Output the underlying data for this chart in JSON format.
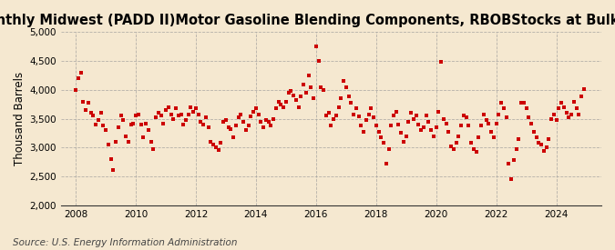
{
  "title": "Monthly Midwest (PADD II)Motor Gasoline Blending Components, RBOBStocks at Bulk Terminal",
  "ylabel": "Thousand Barrels",
  "source": "Source: U.S. Energy Information Administration",
  "ylim": [
    2000,
    5000
  ],
  "yticks": [
    2000,
    2500,
    3000,
    3500,
    4000,
    4500,
    5000
  ],
  "ytick_labels": [
    "2,000",
    "2,500",
    "3,000",
    "3,500",
    "4,000",
    "4,500",
    "5,000"
  ],
  "xlim": [
    2007.5,
    2025.5
  ],
  "xticks": [
    2008,
    2010,
    2012,
    2014,
    2016,
    2018,
    2020,
    2022,
    2024
  ],
  "marker_color": "#CC0000",
  "marker": "s",
  "marker_size": 3.5,
  "bg_color": "#F5E8D0",
  "plot_bg_color": "#F5E8D0",
  "grid_color": "#999999",
  "title_fontsize": 10.5,
  "ylabel_fontsize": 8.5,
  "source_fontsize": 7.5,
  "dates": [
    2008.0,
    2008.083,
    2008.167,
    2008.25,
    2008.333,
    2008.417,
    2008.5,
    2008.583,
    2008.667,
    2008.75,
    2008.833,
    2008.917,
    2009.0,
    2009.083,
    2009.167,
    2009.25,
    2009.333,
    2009.417,
    2009.5,
    2009.583,
    2009.667,
    2009.75,
    2009.833,
    2009.917,
    2010.0,
    2010.083,
    2010.167,
    2010.25,
    2010.333,
    2010.417,
    2010.5,
    2010.583,
    2010.667,
    2010.75,
    2010.833,
    2010.917,
    2011.0,
    2011.083,
    2011.167,
    2011.25,
    2011.333,
    2011.417,
    2011.5,
    2011.583,
    2011.667,
    2011.75,
    2011.833,
    2011.917,
    2012.0,
    2012.083,
    2012.167,
    2012.25,
    2012.333,
    2012.417,
    2012.5,
    2012.583,
    2012.667,
    2012.75,
    2012.833,
    2012.917,
    2013.0,
    2013.083,
    2013.167,
    2013.25,
    2013.333,
    2013.417,
    2013.5,
    2013.583,
    2013.667,
    2013.75,
    2013.833,
    2013.917,
    2014.0,
    2014.083,
    2014.167,
    2014.25,
    2014.333,
    2014.417,
    2014.5,
    2014.583,
    2014.667,
    2014.75,
    2014.833,
    2014.917,
    2015.0,
    2015.083,
    2015.167,
    2015.25,
    2015.333,
    2015.417,
    2015.5,
    2015.583,
    2015.667,
    2015.75,
    2015.833,
    2015.917,
    2016.0,
    2016.083,
    2016.167,
    2016.25,
    2016.333,
    2016.417,
    2016.5,
    2016.583,
    2016.667,
    2016.75,
    2016.833,
    2016.917,
    2017.0,
    2017.083,
    2017.167,
    2017.25,
    2017.333,
    2017.417,
    2017.5,
    2017.583,
    2017.667,
    2017.75,
    2017.833,
    2017.917,
    2018.0,
    2018.083,
    2018.167,
    2018.25,
    2018.333,
    2018.417,
    2018.5,
    2018.583,
    2018.667,
    2018.75,
    2018.833,
    2018.917,
    2019.0,
    2019.083,
    2019.167,
    2019.25,
    2019.333,
    2019.417,
    2019.5,
    2019.583,
    2019.667,
    2019.75,
    2019.833,
    2019.917,
    2020.0,
    2020.083,
    2020.167,
    2020.25,
    2020.333,
    2020.417,
    2020.5,
    2020.583,
    2020.667,
    2020.75,
    2020.833,
    2020.917,
    2021.0,
    2021.083,
    2021.167,
    2021.25,
    2021.333,
    2021.417,
    2021.5,
    2021.583,
    2021.667,
    2021.75,
    2021.833,
    2021.917,
    2022.0,
    2022.083,
    2022.167,
    2022.25,
    2022.333,
    2022.417,
    2022.5,
    2022.583,
    2022.667,
    2022.75,
    2022.833,
    2022.917,
    2023.0,
    2023.083,
    2023.167,
    2023.25,
    2023.333,
    2023.417,
    2023.5,
    2023.583,
    2023.667,
    2023.75,
    2023.833,
    2023.917,
    2024.0,
    2024.083,
    2024.167,
    2024.25,
    2024.333,
    2024.417,
    2024.5,
    2024.583,
    2024.667,
    2024.75,
    2024.833,
    2024.917
  ],
  "values": [
    4000,
    4200,
    4300,
    3800,
    3650,
    3780,
    3600,
    3550,
    3400,
    3480,
    3600,
    3380,
    3300,
    3050,
    2800,
    2620,
    3100,
    3350,
    3550,
    3480,
    3200,
    3100,
    3400,
    3420,
    3550,
    3580,
    3400,
    3180,
    3420,
    3300,
    3100,
    2980,
    3520,
    3600,
    3560,
    3420,
    3650,
    3700,
    3580,
    3500,
    3680,
    3550,
    3580,
    3400,
    3480,
    3580,
    3700,
    3620,
    3680,
    3580,
    3450,
    3400,
    3520,
    3350,
    3100,
    3050,
    3000,
    2960,
    3080,
    3450,
    3480,
    3350,
    3320,
    3180,
    3380,
    3530,
    3580,
    3450,
    3300,
    3380,
    3540,
    3620,
    3680,
    3580,
    3450,
    3350,
    3480,
    3450,
    3380,
    3500,
    3680,
    3800,
    3750,
    3700,
    3800,
    3950,
    3980,
    3900,
    3820,
    3700,
    3880,
    4100,
    3950,
    4250,
    4050,
    3850,
    4750,
    4500,
    4050,
    4000,
    3550,
    3600,
    3380,
    3500,
    3550,
    3700,
    3850,
    4150,
    4050,
    3880,
    3780,
    3580,
    3680,
    3540,
    3380,
    3280,
    3480,
    3580,
    3680,
    3520,
    3380,
    3280,
    3180,
    3080,
    2730,
    2980,
    3380,
    3550,
    3620,
    3400,
    3250,
    3100,
    3200,
    3450,
    3600,
    3500,
    3550,
    3400,
    3300,
    3350,
    3550,
    3450,
    3300,
    3200,
    3350,
    3620,
    4480,
    3500,
    3420,
    3280,
    3020,
    2980,
    3080,
    3200,
    3380,
    3560,
    3520,
    3380,
    3080,
    2980,
    2930,
    3180,
    3380,
    3580,
    3480,
    3420,
    3280,
    3180,
    3420,
    3580,
    3780,
    3680,
    3520,
    2720,
    2460,
    2780,
    2980,
    3150,
    3780,
    3780,
    3680,
    3520,
    3420,
    3280,
    3180,
    3080,
    3050,
    2950,
    3000,
    3150,
    3500,
    3580,
    3480,
    3680,
    3780,
    3700,
    3600,
    3520,
    3580,
    3800,
    3680,
    3580,
    3880,
    4020
  ]
}
